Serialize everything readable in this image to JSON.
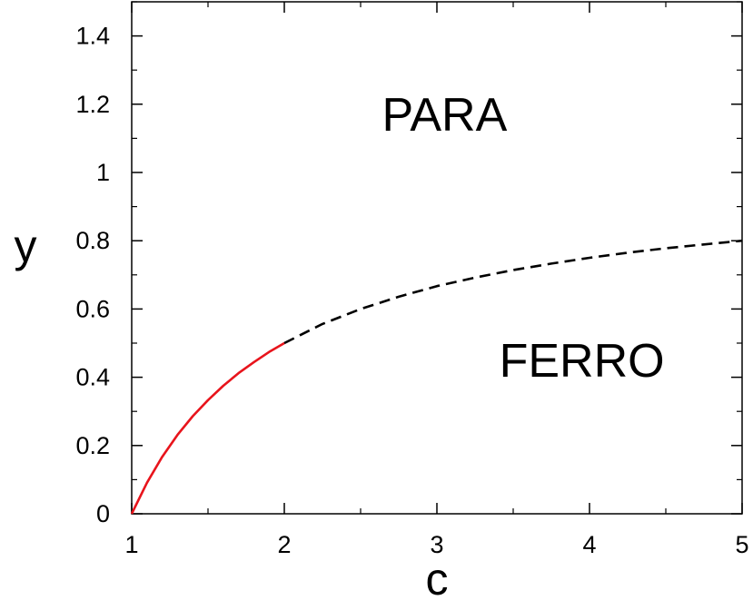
{
  "chart_data": {
    "type": "line",
    "title": "",
    "xlabel": "c",
    "ylabel": "y",
    "xlim": [
      1,
      5
    ],
    "ylim": [
      0,
      1.5
    ],
    "xticks": [
      1,
      2,
      3,
      4,
      5
    ],
    "yticks": [
      0,
      0.2,
      0.4,
      0.6,
      0.8,
      1,
      1.2,
      1.4
    ],
    "xtick_labels": [
      "1",
      "2",
      "3",
      "4",
      "5"
    ],
    "ytick_labels": [
      "0",
      "0.2",
      "0.4",
      "0.6",
      "0.8",
      "1",
      "1.2",
      "1.4"
    ],
    "grid": false,
    "legend": "none",
    "series": [
      {
        "style": "solid",
        "color": "#e8141c",
        "x": [
          1.0,
          1.1,
          1.2,
          1.3,
          1.4,
          1.5,
          1.6,
          1.7,
          1.8,
          1.9,
          2.0
        ],
        "y": [
          0.0,
          0.091,
          0.167,
          0.231,
          0.286,
          0.333,
          0.375,
          0.412,
          0.444,
          0.474,
          0.5
        ]
      },
      {
        "style": "dashed",
        "color": "#000000",
        "x": [
          2.0,
          2.25,
          2.5,
          2.75,
          3.0,
          3.25,
          3.5,
          3.75,
          4.0,
          4.25,
          4.5,
          4.75,
          5.0
        ],
        "y": [
          0.5,
          0.556,
          0.6,
          0.636,
          0.667,
          0.692,
          0.714,
          0.733,
          0.75,
          0.765,
          0.778,
          0.789,
          0.8
        ]
      }
    ],
    "annotations": [
      {
        "text": "PARA",
        "x": 3.05,
        "y": 1.17
      },
      {
        "text": "FERRO",
        "x": 3.95,
        "y": 0.45
      }
    ]
  }
}
